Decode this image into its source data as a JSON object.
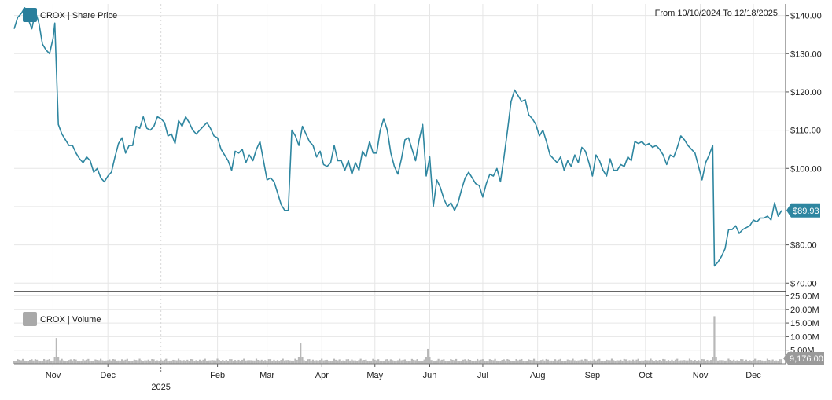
{
  "header": {
    "date_range": "From 10/10/2024 To 12/18/2025"
  },
  "colors": {
    "price_line": "#2e86a0",
    "price_swatch": "#2a7f9c",
    "volume_bar": "#b8b8b8",
    "volume_swatch": "#a9a9a9",
    "grid": "#e6e6e6",
    "divider": "#333333",
    "label_badge": "#2e86a0",
    "volume_badge": "#9a9a9a"
  },
  "chart_data": [
    {
      "type": "line",
      "legend": "CROX | Share Price",
      "y_tick_labels": [
        "$140.00",
        "$130.00",
        "$120.00",
        "$110.00",
        "$100.00",
        "$80.00",
        "$70.00"
      ],
      "y_ticks": [
        140,
        130,
        120,
        110,
        100,
        80,
        70
      ],
      "ylim": [
        68,
        143
      ],
      "last_value_label": "$89.93",
      "x_tick_labels": [
        "Nov",
        "Dec",
        "Feb",
        "Mar",
        "Apr",
        "May",
        "Jun",
        "Jul",
        "Aug",
        "Sep",
        "Oct",
        "Nov",
        "Dec"
      ],
      "x_tick_days": [
        22,
        53,
        115,
        143,
        174,
        204,
        235,
        265,
        296,
        327,
        357,
        388,
        418
      ],
      "x_year_label": "2025",
      "x_year_day": 83,
      "x_range_days": [
        0,
        434
      ],
      "grid": true,
      "series": [
        {
          "name": "CROX",
          "points": [
            [
              0,
              136.5
            ],
            [
              2,
              139.5
            ],
            [
              4,
              140.5
            ],
            [
              6,
              142
            ],
            [
              8,
              139
            ],
            [
              10,
              136.5
            ],
            [
              12,
              141
            ],
            [
              14,
              138
            ],
            [
              16,
              132.5
            ],
            [
              18,
              131
            ],
            [
              20,
              130
            ],
            [
              22,
              134
            ],
            [
              23,
              138
            ],
            [
              25,
              111.5
            ],
            [
              27,
              109
            ],
            [
              29,
              107.5
            ],
            [
              31,
              106
            ],
            [
              33,
              106
            ],
            [
              35,
              104
            ],
            [
              37,
              102.5
            ],
            [
              39,
              101.5
            ],
            [
              41,
              103
            ],
            [
              43,
              102
            ],
            [
              45,
              99
            ],
            [
              47,
              100
            ],
            [
              49,
              97.5
            ],
            [
              51,
              96.5
            ],
            [
              53,
              98
            ],
            [
              55,
              99
            ],
            [
              57,
              103
            ],
            [
              59,
              106.5
            ],
            [
              61,
              108
            ],
            [
              63,
              104
            ],
            [
              65,
              106
            ],
            [
              67,
              106
            ],
            [
              69,
              111
            ],
            [
              71,
              110.5
            ],
            [
              73,
              113.5
            ],
            [
              75,
              110.5
            ],
            [
              77,
              110
            ],
            [
              79,
              111
            ],
            [
              81,
              113.5
            ],
            [
              83,
              113
            ],
            [
              85,
              112
            ],
            [
              87,
              108.5
            ],
            [
              89,
              109
            ],
            [
              91,
              106.5
            ],
            [
              93,
              112.5
            ],
            [
              95,
              111
            ],
            [
              97,
              113.5
            ],
            [
              99,
              112
            ],
            [
              101,
              110
            ],
            [
              103,
              109
            ],
            [
              105,
              110
            ],
            [
              107,
              111
            ],
            [
              109,
              112
            ],
            [
              111,
              110.5
            ],
            [
              113,
              108.5
            ],
            [
              115,
              108
            ],
            [
              117,
              105
            ],
            [
              119,
              103.5
            ],
            [
              121,
              102
            ],
            [
              123,
              99.5
            ],
            [
              125,
              104.5
            ],
            [
              127,
              104
            ],
            [
              129,
              105
            ],
            [
              131,
              101.5
            ],
            [
              133,
              103.5
            ],
            [
              135,
              102
            ],
            [
              137,
              105
            ],
            [
              139,
              107
            ],
            [
              141,
              102
            ],
            [
              143,
              97
            ],
            [
              145,
              97.5
            ],
            [
              147,
              96.5
            ],
            [
              149,
              93.5
            ],
            [
              151,
              90.5
            ],
            [
              153,
              89
            ],
            [
              155,
              89
            ],
            [
              157,
              110
            ],
            [
              159,
              108.5
            ],
            [
              161,
              106
            ],
            [
              163,
              111
            ],
            [
              165,
              109
            ],
            [
              167,
              107
            ],
            [
              169,
              106
            ],
            [
              171,
              103
            ],
            [
              173,
              104.5
            ],
            [
              175,
              101
            ],
            [
              177,
              100.5
            ],
            [
              179,
              101.5
            ],
            [
              181,
              106
            ],
            [
              183,
              102
            ],
            [
              185,
              102
            ],
            [
              187,
              99.5
            ],
            [
              189,
              102
            ],
            [
              191,
              98.5
            ],
            [
              193,
              101.5
            ],
            [
              195,
              99.5
            ],
            [
              197,
              104.5
            ],
            [
              199,
              103
            ],
            [
              201,
              107
            ],
            [
              203,
              104
            ],
            [
              205,
              104
            ],
            [
              207,
              110
            ],
            [
              209,
              113
            ],
            [
              211,
              110
            ],
            [
              213,
              104
            ],
            [
              215,
              100.5
            ],
            [
              217,
              98.5
            ],
            [
              219,
              102.5
            ],
            [
              221,
              107.5
            ],
            [
              223,
              108
            ],
            [
              225,
              105
            ],
            [
              227,
              102
            ],
            [
              229,
              107.5
            ],
            [
              231,
              111.5
            ],
            [
              233,
              98
            ],
            [
              235,
              103
            ],
            [
              237,
              90
            ],
            [
              239,
              97
            ],
            [
              241,
              95
            ],
            [
              243,
              92
            ],
            [
              245,
              90
            ],
            [
              247,
              91
            ],
            [
              249,
              89
            ],
            [
              251,
              91
            ],
            [
              253,
              94.5
            ],
            [
              255,
              97.5
            ],
            [
              257,
              99
            ],
            [
              259,
              97.5
            ],
            [
              261,
              96
            ],
            [
              263,
              95.5
            ],
            [
              265,
              92.5
            ],
            [
              267,
              96
            ],
            [
              269,
              98.5
            ],
            [
              271,
              98
            ],
            [
              273,
              100
            ],
            [
              275,
              96.5
            ],
            [
              277,
              103
            ],
            [
              279,
              110
            ],
            [
              281,
              117.5
            ],
            [
              283,
              120.5
            ],
            [
              285,
              119
            ],
            [
              287,
              117.5
            ],
            [
              289,
              118
            ],
            [
              291,
              114
            ],
            [
              293,
              113
            ],
            [
              295,
              111.5
            ],
            [
              297,
              108.5
            ],
            [
              299,
              110
            ],
            [
              301,
              107
            ],
            [
              303,
              103.5
            ],
            [
              305,
              102.5
            ],
            [
              307,
              101.5
            ],
            [
              309,
              103
            ],
            [
              311,
              99.5
            ],
            [
              313,
              102
            ],
            [
              315,
              100.5
            ],
            [
              317,
              103.5
            ],
            [
              319,
              101.5
            ],
            [
              321,
              105.5
            ],
            [
              323,
              104.5
            ],
            [
              325,
              101.5
            ],
            [
              327,
              98
            ],
            [
              329,
              103.5
            ],
            [
              331,
              102
            ],
            [
              333,
              99.5
            ],
            [
              335,
              98
            ],
            [
              337,
              102.5
            ],
            [
              339,
              99.5
            ],
            [
              341,
              99.5
            ],
            [
              343,
              101
            ],
            [
              345,
              100.5
            ],
            [
              347,
              103
            ],
            [
              349,
              102
            ],
            [
              351,
              107
            ],
            [
              353,
              106.5
            ],
            [
              355,
              107
            ],
            [
              357,
              106
            ],
            [
              359,
              106.5
            ],
            [
              361,
              105.5
            ],
            [
              363,
              106
            ],
            [
              365,
              105
            ],
            [
              367,
              103.5
            ],
            [
              369,
              101
            ],
            [
              371,
              103.5
            ],
            [
              373,
              103
            ],
            [
              375,
              105.5
            ],
            [
              377,
              108.5
            ],
            [
              379,
              107.5
            ],
            [
              381,
              106
            ],
            [
              383,
              105
            ],
            [
              385,
              104
            ],
            [
              387,
              100.5
            ],
            [
              389,
              97
            ],
            [
              391,
              101.5
            ],
            [
              393,
              103.5
            ],
            [
              395,
              106
            ],
            [
              396,
              74.5
            ],
            [
              398,
              75.5
            ],
            [
              400,
              77
            ],
            [
              402,
              79
            ],
            [
              404,
              84
            ],
            [
              406,
              84
            ],
            [
              408,
              85
            ],
            [
              410,
              83
            ],
            [
              412,
              84
            ],
            [
              414,
              84.5
            ],
            [
              416,
              85
            ],
            [
              418,
              86.5
            ],
            [
              420,
              86
            ],
            [
              422,
              87
            ],
            [
              424,
              87
            ],
            [
              426,
              87.5
            ],
            [
              428,
              86.5
            ],
            [
              430,
              91
            ],
            [
              432,
              87.5
            ],
            [
              434,
              89
            ]
          ]
        }
      ]
    },
    {
      "type": "bar",
      "legend": "CROX | Volume",
      "y_tick_labels": [
        "25.00M",
        "20.00M",
        "15.00M",
        "10.00M",
        "5.00M"
      ],
      "y_ticks": [
        25,
        20,
        15,
        10,
        5
      ],
      "ylim": [
        0,
        26
      ],
      "units": "millions",
      "last_value_label": "9,176.00",
      "spikes": [
        {
          "day": 24,
          "value": 9.5
        },
        {
          "day": 162,
          "value": 7.5
        },
        {
          "day": 234,
          "value": 5.5
        },
        {
          "day": 396,
          "value": 17.5
        }
      ],
      "baseline_value": 1.5
    }
  ]
}
